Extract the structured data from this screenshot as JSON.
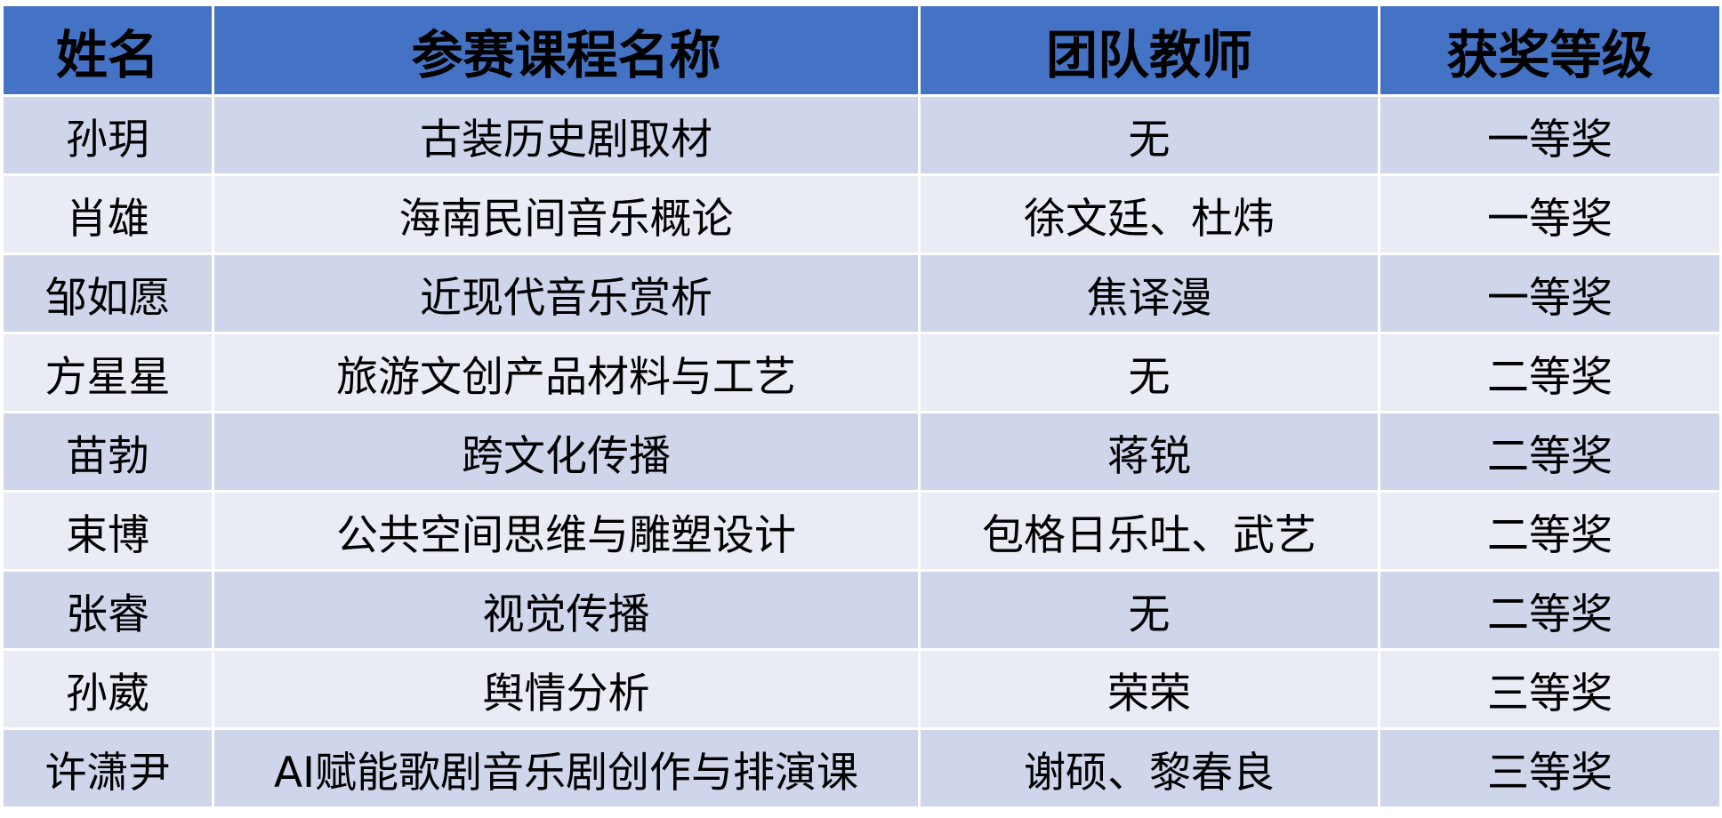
{
  "colors": {
    "header": "#4472C4",
    "row_odd": "#CFD5EA",
    "row_even": "#E9EBF5"
  },
  "headers": [
    "姓名",
    "参赛课程名称",
    "团队教师",
    "获奖等级"
  ],
  "rows": [
    [
      "孙玥",
      "古装历史剧取材",
      "无",
      "一等奖"
    ],
    [
      "肖雄",
      "海南民间音乐概论",
      "徐文廷、杜炜",
      "一等奖"
    ],
    [
      "邹如愿",
      "近现代音乐赏析",
      "焦译漫",
      "一等奖"
    ],
    [
      "方星星",
      "旅游文创产品材料与工艺",
      "无",
      "二等奖"
    ],
    [
      "苗勃",
      "跨文化传播",
      "蒋锐",
      "二等奖"
    ],
    [
      "束博",
      "公共空间思维与雕塑设计",
      "包格日乐吐、武艺",
      "二等奖"
    ],
    [
      "张睿",
      "视觉传播",
      "无",
      "二等奖"
    ],
    [
      "孙葳",
      "舆情分析",
      "荣荣",
      "三等奖"
    ],
    [
      "许潇尹",
      "AI赋能歌剧音乐剧创作与排演课",
      "谢硕、黎春良",
      "三等奖"
    ]
  ]
}
